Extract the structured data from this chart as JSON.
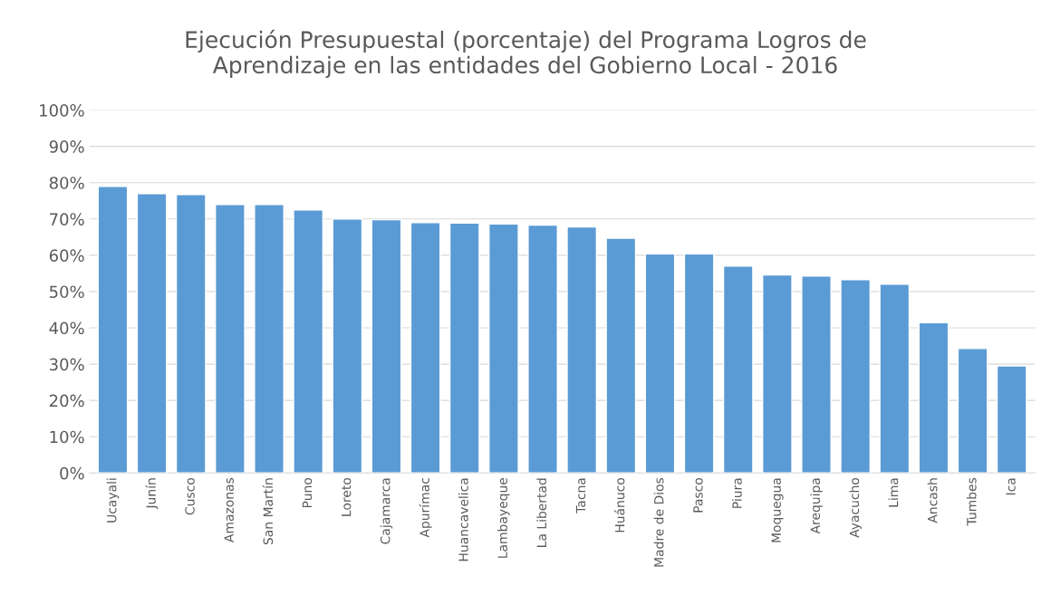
{
  "chart_data": {
    "type": "bar",
    "title": "Ejecución Presupuestal (porcentaje) del Programa Logros de\nAprendizaje en las entidades del Gobierno Local - 2016",
    "categories": [
      "Ucayali",
      "Junín",
      "Cusco",
      "Amazonas",
      "San Martín",
      "Puno",
      "Loreto",
      "Cajamarca",
      "Apurímac",
      "Huancavelica",
      "Lambayeque",
      "La Libertad",
      "Tacna",
      "Huánuco",
      "Madre de Dios",
      "Pasco",
      "Piura",
      "Moquegua",
      "Arequipa",
      "Ayacucho",
      "Lima",
      "Ancash",
      "Tumbes",
      "Ica"
    ],
    "values": [
      79,
      77,
      76.7,
      74,
      74,
      72.5,
      70,
      69.8,
      69,
      68.9,
      68.6,
      68.3,
      67.8,
      64.7,
      60.4,
      60.4,
      57,
      54.6,
      54.3,
      53.3,
      52,
      41.4,
      34.3,
      29.5
    ],
    "color": "#5b9bd5",
    "ylim": [
      0,
      100
    ],
    "yticks": [
      {
        "value": 0,
        "label": "0%"
      },
      {
        "value": 10,
        "label": "10%"
      },
      {
        "value": 20,
        "label": "20%"
      },
      {
        "value": 30,
        "label": "30%"
      },
      {
        "value": 40,
        "label": "40%"
      },
      {
        "value": 50,
        "label": "50%"
      },
      {
        "value": 60,
        "label": "60%"
      },
      {
        "value": 70,
        "label": "70%"
      },
      {
        "value": 80,
        "label": "80%"
      },
      {
        "value": 90,
        "label": "90%"
      },
      {
        "value": 100,
        "label": "100%"
      }
    ],
    "grid": "y"
  }
}
